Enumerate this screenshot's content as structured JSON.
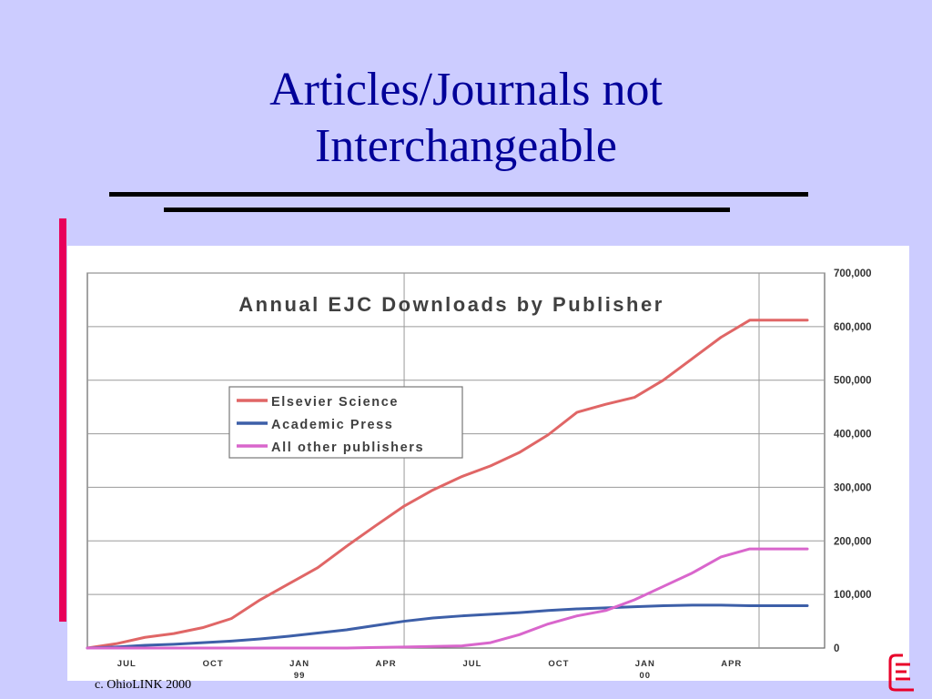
{
  "slide": {
    "title_line1": "Articles/Journals not",
    "title_line2": "Interchangeable",
    "footer": "c. OhioLINK 2000"
  },
  "colors": {
    "background": "#ccccff",
    "title": "#000099",
    "accent_bar": "#e8005a"
  },
  "chart_data": {
    "type": "line",
    "title": "Annual EJC Downloads by Publisher",
    "xlabel": "",
    "ylabel": "",
    "ylim": [
      0,
      700000
    ],
    "y_ticks": [
      "0",
      "100,000",
      "200,000",
      "300,000",
      "400,000",
      "500,000",
      "600,000",
      "700,000"
    ],
    "y_axis_position": "right",
    "x_ticks": [
      {
        "label": "JUL",
        "sub": ""
      },
      {
        "label": "OCT",
        "sub": ""
      },
      {
        "label": "JAN",
        "sub": "99"
      },
      {
        "label": "APR",
        "sub": ""
      },
      {
        "label": "JUL",
        "sub": ""
      },
      {
        "label": "OCT",
        "sub": ""
      },
      {
        "label": "JAN",
        "sub": "00"
      },
      {
        "label": "APR",
        "sub": ""
      }
    ],
    "x_range_months": [
      0,
      22
    ],
    "x_tick_months": [
      2,
      5,
      8,
      11,
      14,
      17,
      20,
      23
    ],
    "vertical_gridlines_at_months": [
      11
    ],
    "grid": "horizontal",
    "legend_position": "upper-left",
    "x": [
      0,
      1,
      2,
      3,
      4,
      5,
      6,
      7,
      8,
      9,
      10,
      11,
      12,
      13,
      14,
      15,
      16,
      17,
      18,
      19,
      20,
      21,
      22,
      23,
      24,
      25
    ],
    "series": [
      {
        "name": "Elsevier Science",
        "color": "#e06666",
        "values": [
          0,
          8000,
          20000,
          27000,
          38000,
          55000,
          90000,
          120000,
          150000,
          190000,
          228000,
          265000,
          295000,
          320000,
          340000,
          365000,
          398000,
          440000,
          455000,
          468000,
          500000,
          540000,
          580000,
          612000,
          612000,
          612000
        ]
      },
      {
        "name": "Academic Press",
        "color": "#3d5fa8",
        "values": [
          0,
          2000,
          5000,
          7000,
          10000,
          13000,
          17000,
          22000,
          28000,
          34000,
          42000,
          50000,
          56000,
          60000,
          63000,
          66000,
          70000,
          73000,
          75000,
          77000,
          79000,
          80000,
          80000,
          79000,
          79000,
          79000
        ]
      },
      {
        "name": "All other publishers",
        "color": "#d966cc",
        "values": [
          0,
          0,
          0,
          0,
          0,
          0,
          0,
          0,
          0,
          0,
          1000,
          2000,
          3000,
          4000,
          10000,
          25000,
          45000,
          60000,
          70000,
          90000,
          115000,
          140000,
          170000,
          185000,
          185000,
          185000
        ]
      }
    ]
  }
}
